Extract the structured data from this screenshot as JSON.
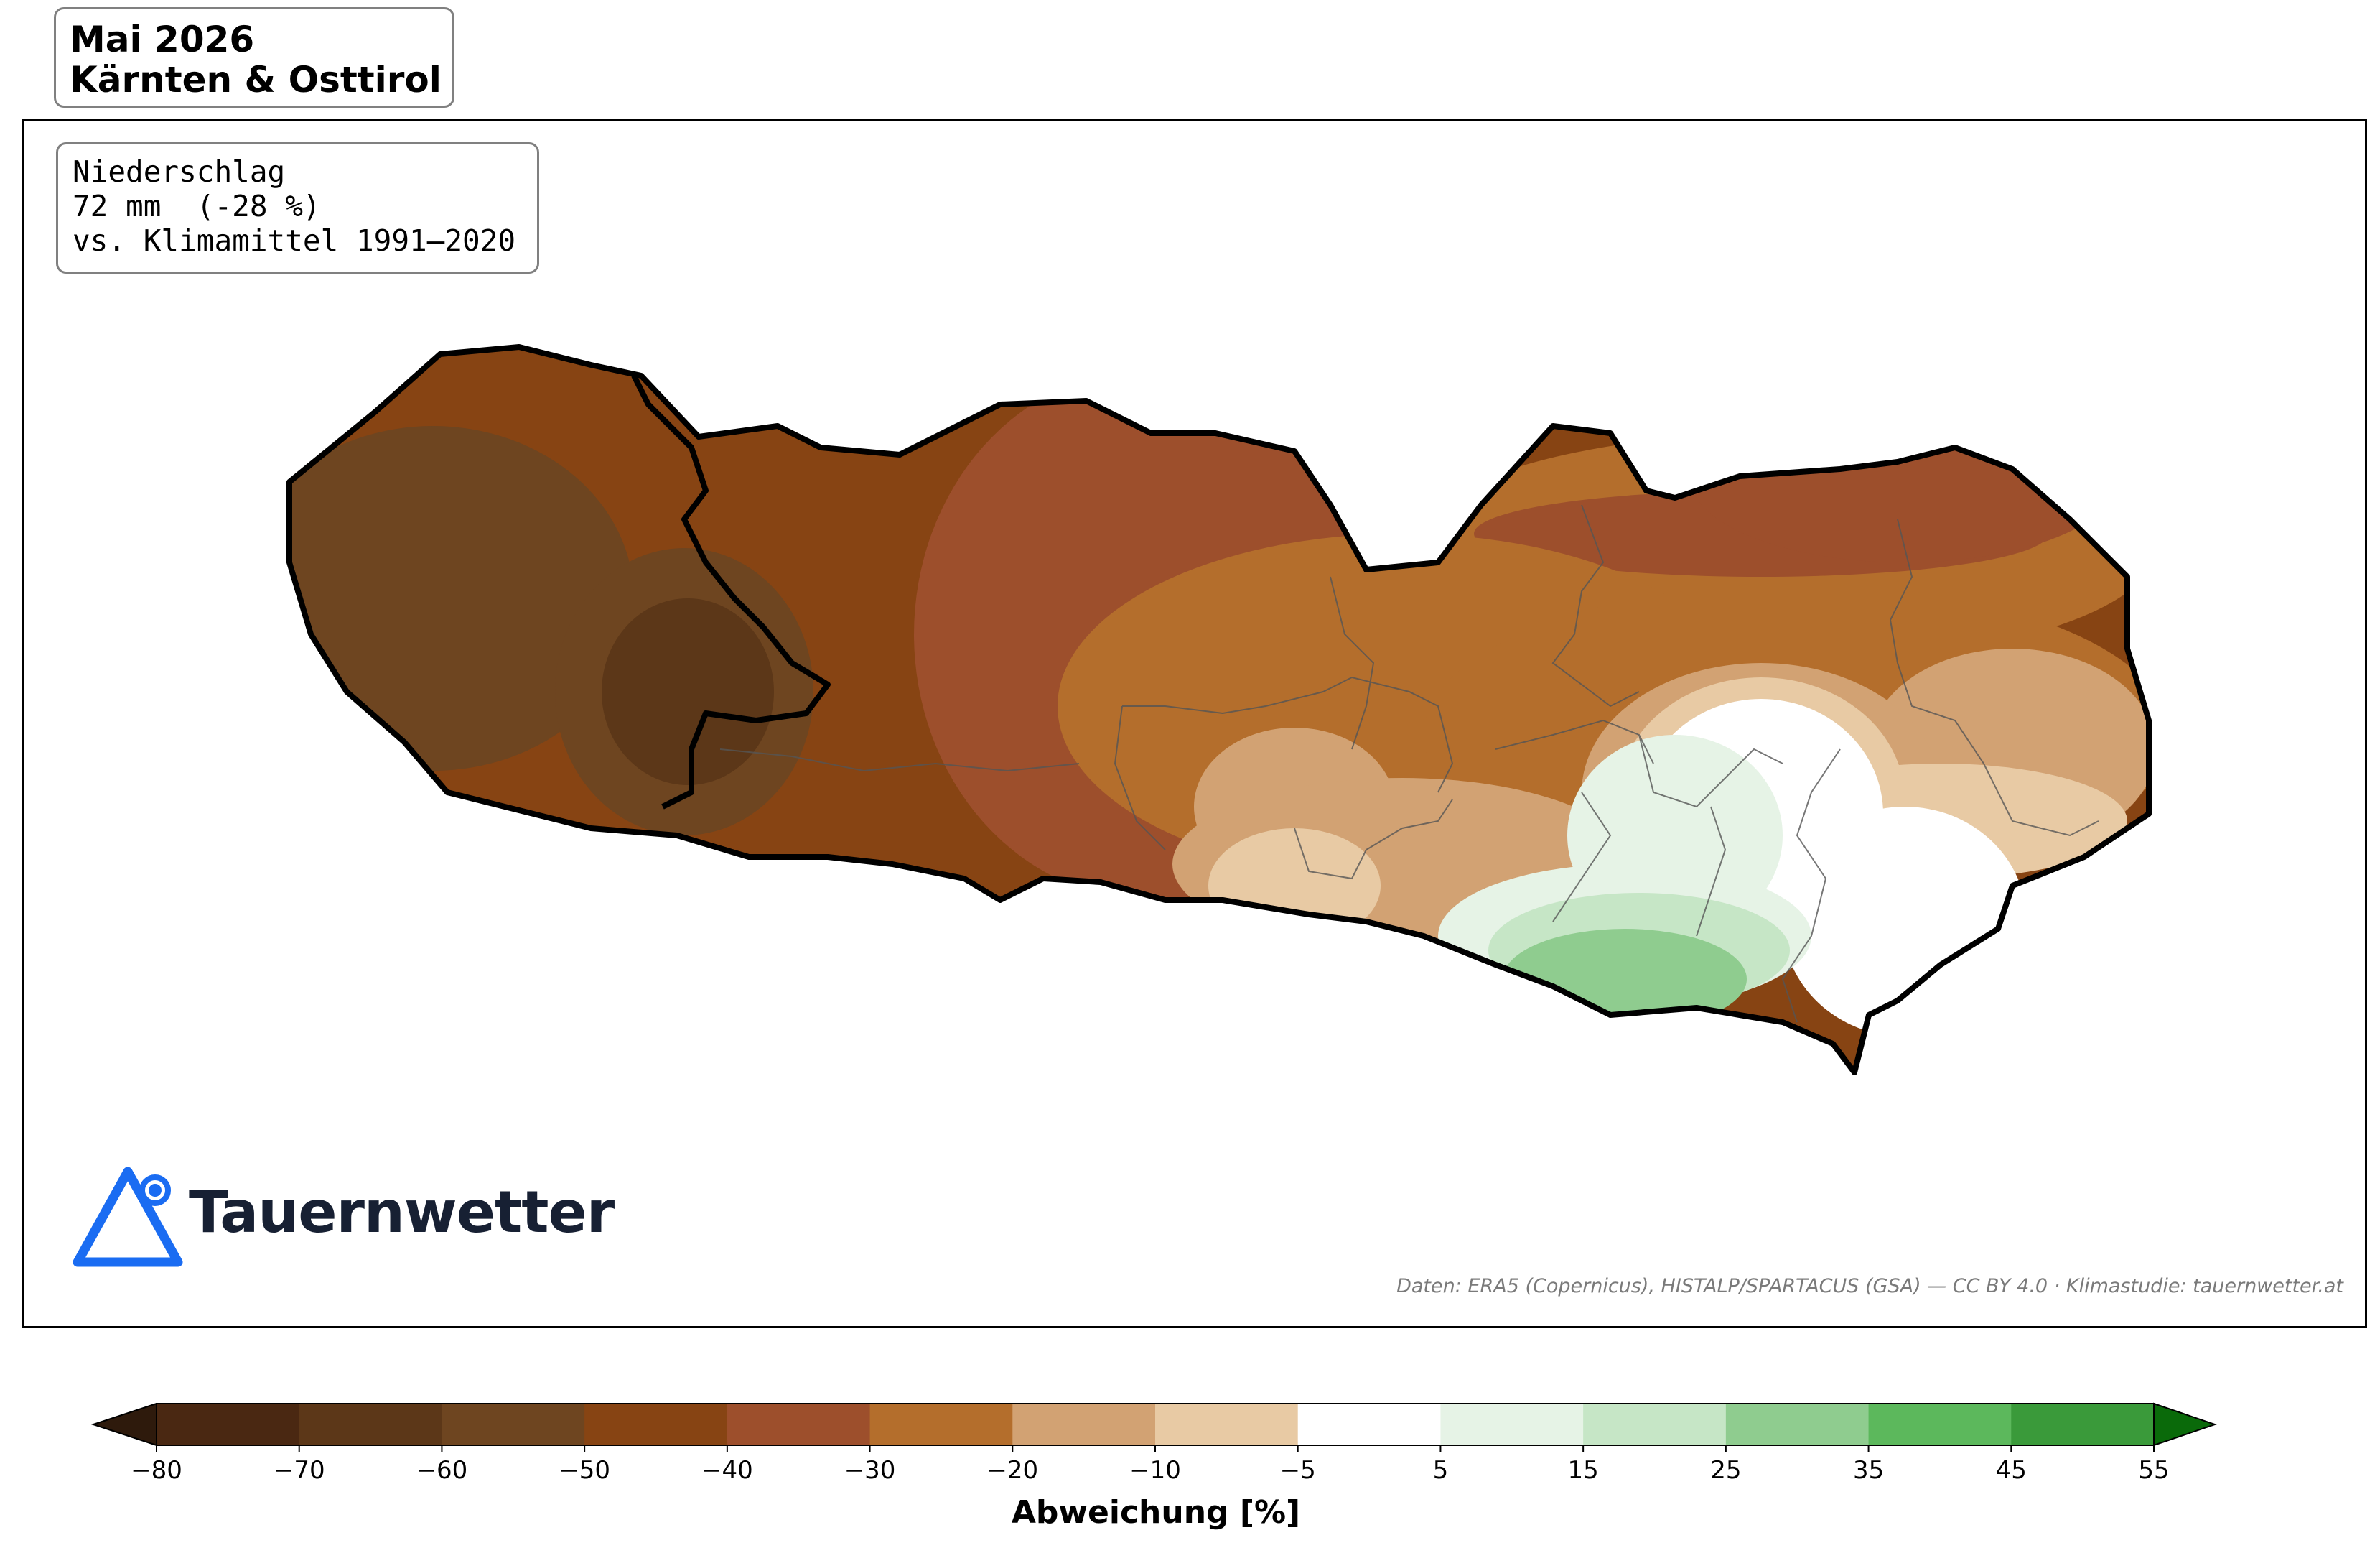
{
  "title": {
    "month": "Mai 2026",
    "region": "Kärnten & Osttirol"
  },
  "info": {
    "line1": "Niederschlag",
    "line2": "72 mm  (-28 %)",
    "line3": "vs. Klimamittel 1991–2020"
  },
  "brand": {
    "name": "Tauernwetter",
    "logo_icon": "mountain-triangle-pin-icon",
    "logo_color": "#1a6cf2",
    "text_color": "#172033"
  },
  "credits": "Daten: ERA5 (Copernicus), HISTALP/SPARTACUS (GSA) — CC BY 4.0  ·  Klimastudie: tauernwetter.at",
  "colorbar": {
    "label": "Abweichung [%]",
    "ticks": [
      "−80",
      "−70",
      "−60",
      "−50",
      "−40",
      "−30",
      "−20",
      "−10",
      "−5",
      "5",
      "15",
      "25",
      "35",
      "45",
      "55"
    ],
    "colors": [
      "#4a2812",
      "#5c3718",
      "#6e4520",
      "#874413",
      "#9d4f2c",
      "#b46e2c",
      "#d2a273",
      "#e8caa4",
      "#ffffff",
      "#e6f3e6",
      "#c6e6c6",
      "#8fcc8f",
      "#5cb85c",
      "#3a9a3a"
    ],
    "extend_low_color": "#2e1a0c",
    "extend_high_color": "#0a6a0a"
  },
  "map": {
    "outline_color": "#000000",
    "district_line_color": "#555555"
  }
}
